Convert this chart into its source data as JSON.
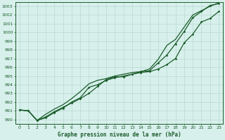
{
  "title": "Graphe pression niveau de la mer (hPa)",
  "bg_color": "#d8f0ec",
  "plot_bg_color": "#d8f0ec",
  "grid_color": "#b8d8d0",
  "line_color": "#1a5c2a",
  "xlim": [
    -0.5,
    23.5
  ],
  "ylim": [
    989.5,
    1003.5
  ],
  "yticks": [
    990,
    991,
    992,
    993,
    994,
    995,
    996,
    997,
    998,
    999,
    1000,
    1001,
    1002,
    1003
  ],
  "xticks": [
    0,
    1,
    2,
    3,
    4,
    5,
    6,
    7,
    8,
    9,
    10,
    11,
    12,
    13,
    14,
    15,
    16,
    17,
    18,
    19,
    20,
    21,
    22,
    23
  ],
  "line1_x": [
    0,
    1,
    2,
    3,
    4,
    5,
    6,
    7,
    8,
    9,
    10,
    11,
    12,
    13,
    14,
    15,
    16,
    17,
    18,
    19,
    20,
    21,
    22,
    23
  ],
  "line1_y": [
    991.1,
    991.0,
    989.9,
    990.3,
    990.9,
    991.4,
    991.9,
    992.4,
    993.0,
    993.8,
    994.6,
    994.9,
    994.9,
    995.2,
    995.5,
    995.6,
    996.5,
    997.4,
    998.7,
    1000.1,
    1001.7,
    1002.4,
    1003.1,
    1003.3
  ],
  "line2_x": [
    0,
    1,
    2,
    3,
    4,
    5,
    6,
    7,
    8,
    9,
    10,
    11,
    12,
    13,
    14,
    15,
    16,
    17,
    18,
    19,
    20,
    21,
    22,
    23
  ],
  "line2_y": [
    991.1,
    991.0,
    989.9,
    990.2,
    990.8,
    991.3,
    992.0,
    992.5,
    993.7,
    994.0,
    994.5,
    994.8,
    995.0,
    995.2,
    995.4,
    995.5,
    995.8,
    996.3,
    997.0,
    998.8,
    999.8,
    1001.2,
    1001.6,
    1002.4
  ],
  "line3_x": [
    0,
    1,
    2,
    3,
    4,
    5,
    6,
    7,
    8,
    9,
    10,
    11,
    12,
    13,
    14,
    15,
    16,
    17,
    18,
    19,
    20,
    21,
    22,
    23
  ],
  "line3_y": [
    991.1,
    991.0,
    989.9,
    990.6,
    991.2,
    991.7,
    992.4,
    993.2,
    994.1,
    994.5,
    994.7,
    995.0,
    995.2,
    995.4,
    995.5,
    995.8,
    996.9,
    998.5,
    999.2,
    1000.6,
    1002.0,
    1002.5,
    1003.0,
    1003.4
  ]
}
